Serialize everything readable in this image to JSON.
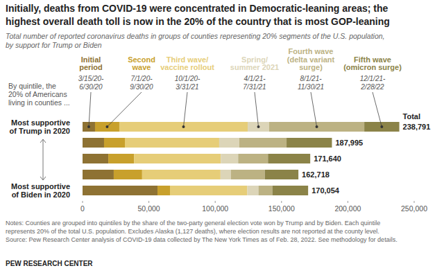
{
  "chart_data": {
    "type": "bar",
    "orientation": "horizontal",
    "stacked": true,
    "grid": false,
    "title": [
      "Initially, deaths from COVID-19 were concentrated in Democratic-leaning areas; the",
      "highest overall death toll is now in the 20% of the country that is most GOP-leaning"
    ],
    "subtitle": [
      "Total number of reported coronavirus deaths in groups of counties representing 20% segments of the U.S. population,",
      "by support for Trump or Biden"
    ],
    "row_header": [
      "By quintile, the",
      "20% of Americans",
      "living in counties ..."
    ],
    "categories": [
      "Most supportive of Trump in 2020",
      null,
      null,
      null,
      "Most supportive of Biden in 2020"
    ],
    "series": [
      {
        "name": "Initial period",
        "period": "3/15/20-6/30/20",
        "color": "#8e7233",
        "values": [
          9400,
          16200,
          19400,
          23500,
          56500
        ]
      },
      {
        "name": "Second wave",
        "period": "7/1/20-9/30/20",
        "color": "#c8a02c",
        "values": [
          18300,
          15700,
          19400,
          21400,
          9400
        ]
      },
      {
        "name": "Third wave/ vaccine rollout",
        "period": "10/1/20-3/31/21",
        "color": "#e6cd78",
        "values": [
          96800,
          71100,
          65400,
          59100,
          58300
        ]
      },
      {
        "name": "Spring/ summer 2021",
        "period": "4/1/21-7/31/21",
        "color": "#dcd5b8",
        "values": [
          16200,
          15200,
          13100,
          7800,
          8400
        ]
      },
      {
        "name": "Fourth wave (delta variant surge)",
        "period": "8/1/21-11/30/21",
        "color": "#bcb283",
        "values": [
          71700,
          35600,
          22500,
          25600,
          10500
        ]
      },
      {
        "name": "Fifth wave (omicron surge)",
        "period": "12/1/21-2/28/22",
        "color": "#8b8348",
        "values": [
          26391,
          34195,
          31840,
          25318,
          26954
        ]
      }
    ],
    "totals_title": "Total",
    "totals": [
      238791,
      187995,
      171640,
      162718,
      170054
    ],
    "totals_labels": [
      "238,791",
      "187,995",
      "171,640",
      "162,718",
      "170,054"
    ],
    "xlim": [
      0,
      250000
    ],
    "xticks": [
      0,
      {
        "value": 50000,
        "label": "50,000"
      },
      {
        "value": 100000,
        "label": "100,000"
      },
      {
        "value": 150000,
        "label": "150,000"
      },
      {
        "value": 200000,
        "label": "200,000"
      },
      {
        "value": 250000,
        "label": "250,000"
      }
    ],
    "notes": [
      "Notes: Counties are grouped into quintiles by the share of the two-party general election vote won by Trump and by Biden. Each quintile",
      "represents 20% of the total U.S. population. Excludes Alaska (1,127 deaths), where election results are not reported at the county level.",
      "Source: Pew Research Center analysis of COVID-19 data collected by The New York Times as of Feb. 28, 2022. See methodology for details."
    ],
    "credit": "PEW RESEARCH CENTER"
  }
}
